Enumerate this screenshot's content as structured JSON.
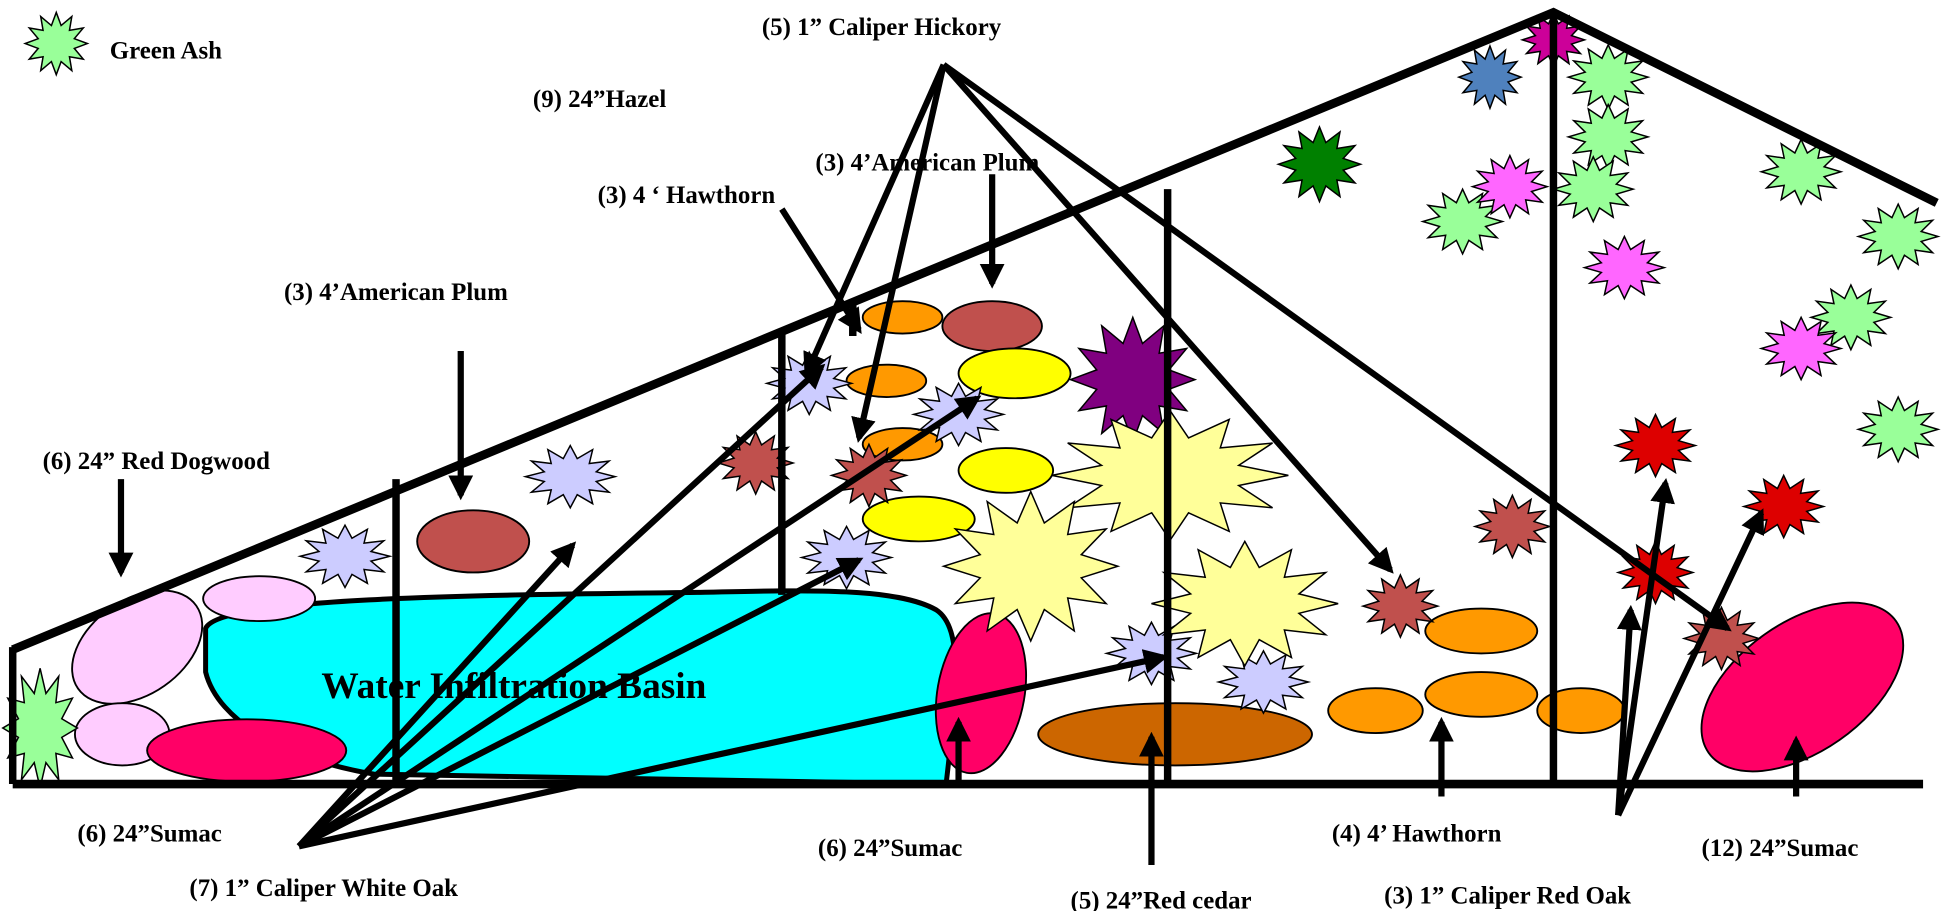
{
  "legend": {
    "label": "Green Ash"
  },
  "labels": [
    {
      "text": "(5) 1” Caliper Hickory"
    },
    {
      "text": "(9) 24”Hazel"
    },
    {
      "text": "(3) 4’American Plum"
    },
    {
      "text": "(3) 4 ‘ Hawthorn"
    },
    {
      "text": "(3) 4’American Plum"
    },
    {
      "text": "(6) 24” Red Dogwood"
    },
    {
      "text": "(6) 24”Sumac"
    },
    {
      "text": "(7) 1” Caliper White Oak"
    },
    {
      "text": "(6) 24”Sumac"
    },
    {
      "text": "(5) 24”Red cedar"
    },
    {
      "text": "(4) 4’ Hawthorn"
    },
    {
      "text": "(3) 1” Caliper Red Oak"
    },
    {
      "text": "(12) 24”Sumac"
    }
  ],
  "basin": {
    "label": "Water Infiltration Basin"
  }
}
